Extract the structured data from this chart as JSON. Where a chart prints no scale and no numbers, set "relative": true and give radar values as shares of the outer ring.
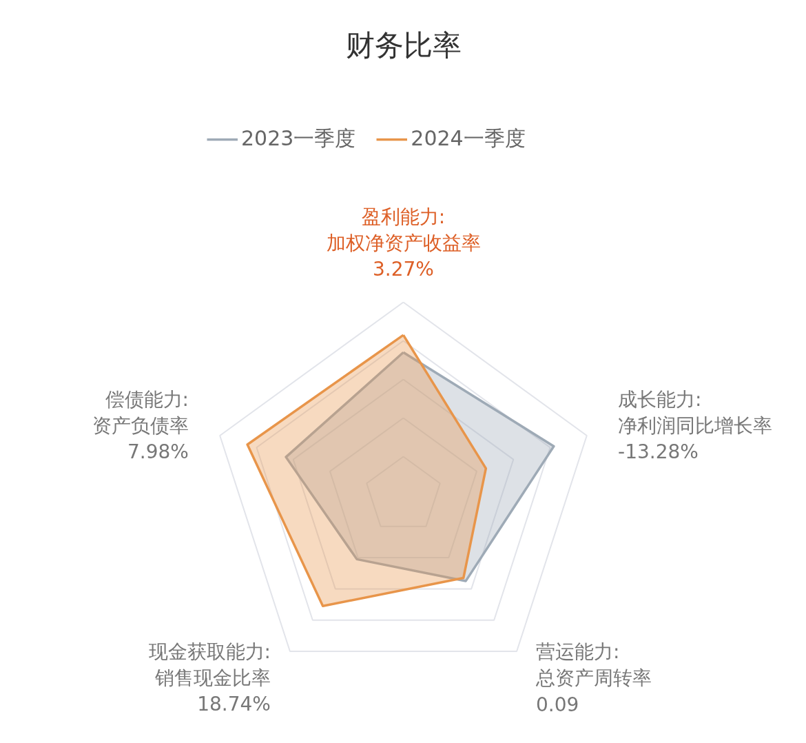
{
  "chart_data": {
    "type": "radar",
    "title": "财务比率",
    "relative": true,
    "grid": true,
    "legend": "top",
    "marker": "none",
    "line_style": "solid",
    "categories": [
      "盈利能力:\n加权净资产收益率\n3.27%",
      "成长能力:\n净利润同比增长率\n-13.28%",
      "营运能力:\n总资产周转率\n0.09",
      "现金获取能力:\n销售现金比率\n18.74%",
      "偿债能力:\n资产负债率\n7.98%"
    ],
    "series": [
      {
        "name": "2023一季度",
        "color": "#9eaab6",
        "values": [
          0.74,
          0.82,
          0.55,
          0.41,
          0.64
        ]
      },
      {
        "name": "2024一季度",
        "color": "#e8954a",
        "values": [
          0.83,
          0.45,
          0.53,
          0.71,
          0.85
        ]
      }
    ]
  }
}
